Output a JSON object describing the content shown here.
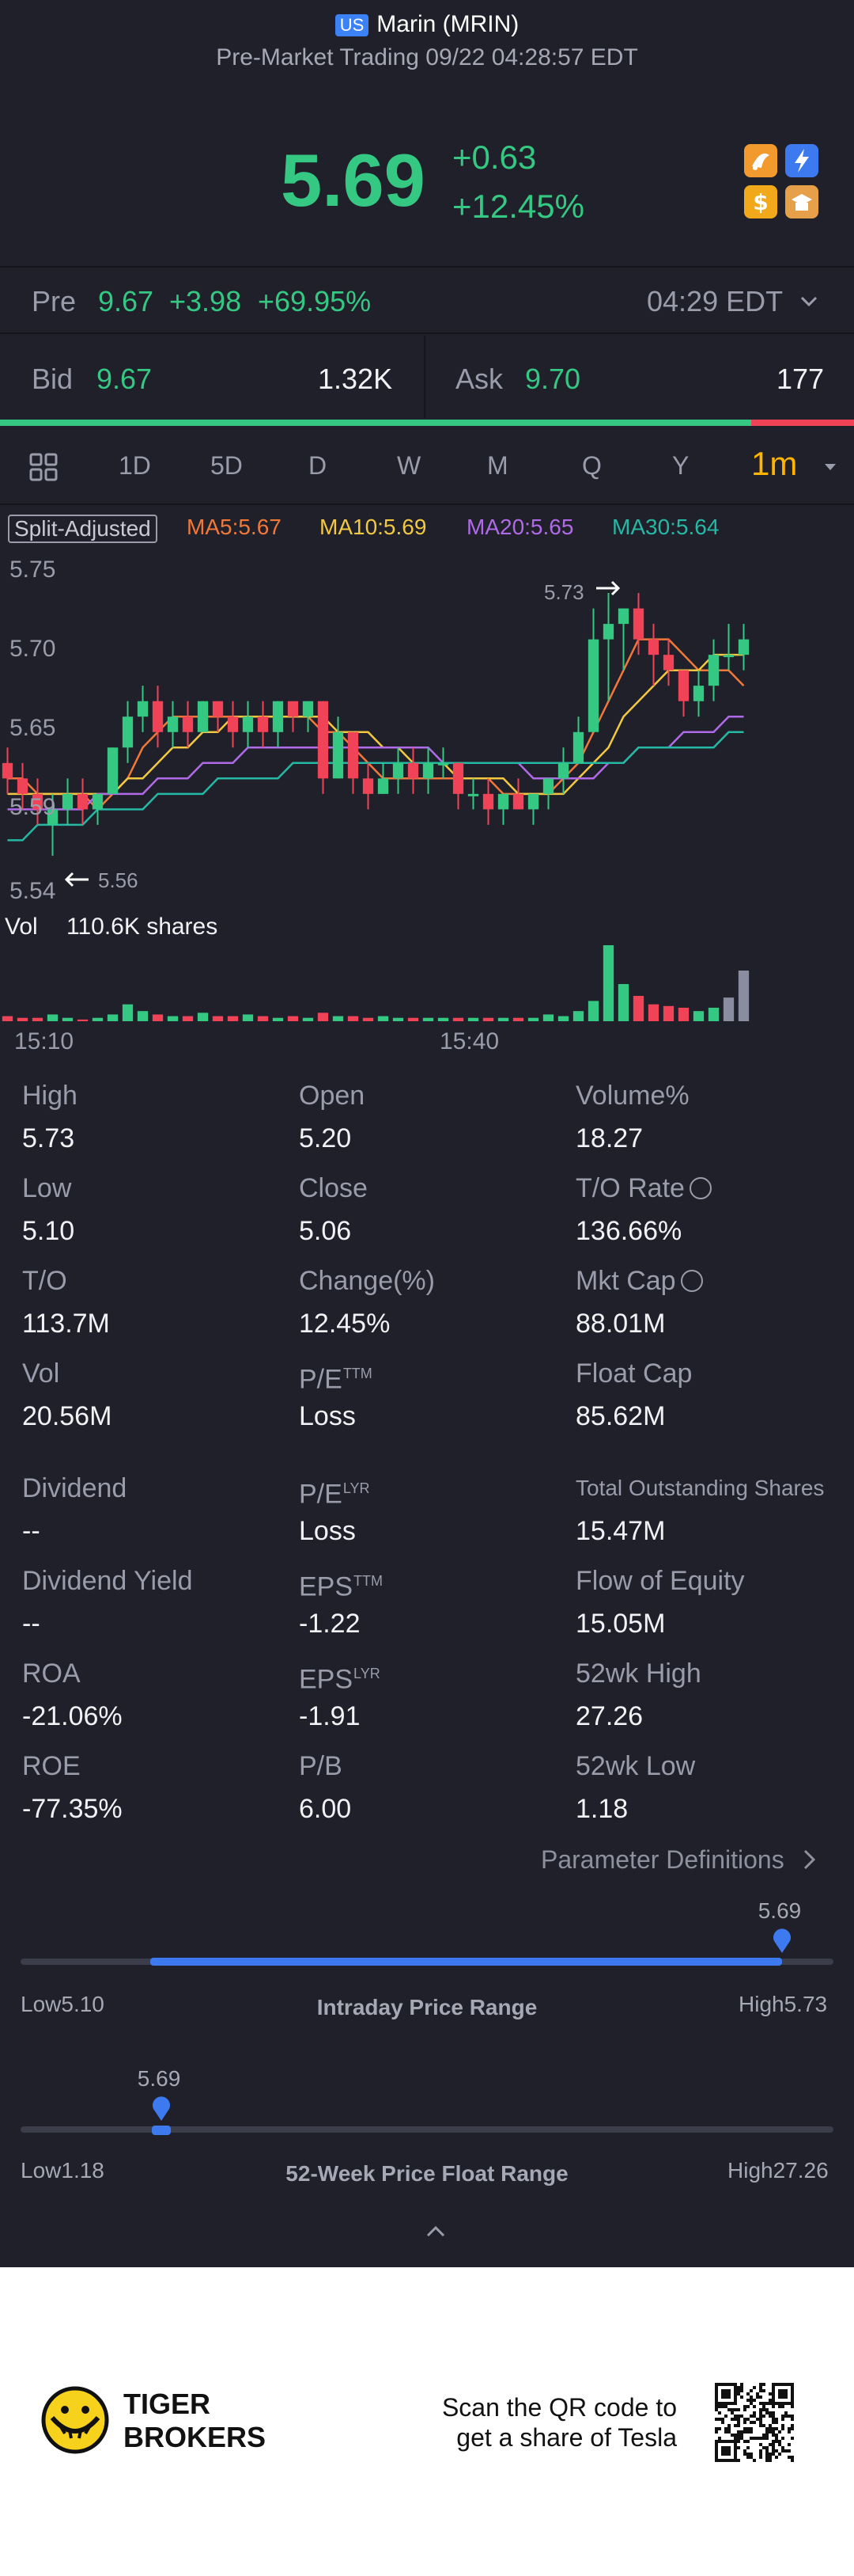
{
  "header": {
    "country_badge": "US",
    "stock_name": "Marin (MRIN)",
    "session_status": "Pre-Market Trading 09/22 04:28:57 EDT"
  },
  "quote": {
    "price": "5.69",
    "change": "+0.63",
    "change_percent": "+12.45%",
    "colors": {
      "up": "#35c883",
      "down": "#f04357",
      "accent": "#ffb400",
      "blue": "#3d7af0"
    }
  },
  "premarket": {
    "label": "Pre",
    "price": "9.67",
    "change": "+3.98",
    "change_percent": "+69.95%",
    "time": "04:29 EDT"
  },
  "bid_ask": {
    "bid_label": "Bid",
    "bid_price": "9.67",
    "bid_size": "1.32K",
    "ask_label": "Ask",
    "ask_price": "9.70",
    "ask_size": "177",
    "bid_share": 0.88
  },
  "period_tabs": [
    "1D",
    "5D",
    "D",
    "W",
    "M",
    "Q",
    "Y",
    "1m"
  ],
  "selected_period": "1m",
  "indicators": {
    "adjust_label": "Split-Adjusted",
    "ma5": "MA5:5.67",
    "ma10": "MA10:5.69",
    "ma20": "MA20:5.65",
    "ma30": "MA30:5.64"
  },
  "chart_axis": {
    "y_ticks": [
      "5.75",
      "5.70",
      "5.65",
      "5.59",
      "5.54"
    ],
    "high_marker": "5.73",
    "low_marker": "5.56",
    "vol_label": "Vol",
    "vol_value": "110.6K shares",
    "x_ticks": [
      "15:10",
      "15:40"
    ]
  },
  "stats": [
    {
      "label": "High",
      "value": "5.73"
    },
    {
      "label": "Open",
      "value": "5.20"
    },
    {
      "label": "Volume%",
      "value": "18.27"
    },
    {
      "label": "Low",
      "value": "5.10"
    },
    {
      "label": "Close",
      "value": "5.06"
    },
    {
      "label": "T/O Rate",
      "value": "136.66%"
    },
    {
      "label": "T/O",
      "value": "113.7M"
    },
    {
      "label": "Change(%)",
      "value": "12.45%"
    },
    {
      "label": "Mkt Cap",
      "value": "88.01M"
    },
    {
      "label": "Vol",
      "value": "20.56M"
    },
    {
      "label": "P/E",
      "sup": "TTM",
      "value": "Loss"
    },
    {
      "label": "Float Cap",
      "value": "85.62M"
    },
    {
      "label": "Dividend",
      "value": "--"
    },
    {
      "label": "P/E",
      "sup": "LYR",
      "value": "Loss"
    },
    {
      "label": "Total Outstanding Shares",
      "value": "15.47M"
    },
    {
      "label": "Dividend Yield",
      "value": "--"
    },
    {
      "label": "EPS",
      "sup": "TTM",
      "value": "-1.22"
    },
    {
      "label": "Flow of Equity",
      "value": "15.05M"
    },
    {
      "label": "ROA",
      "value": "-21.06%"
    },
    {
      "label": "EPS",
      "sup": "LYR",
      "value": "-1.91"
    },
    {
      "label": "52wk High",
      "value": "27.26"
    },
    {
      "label": "ROE",
      "value": "-77.35%"
    },
    {
      "label": "P/B",
      "value": "6.00"
    },
    {
      "label": "52wk Low",
      "value": "1.18"
    }
  ],
  "param_link": "Parameter Definitions",
  "intraday_range": {
    "title": "Intraday Price Range",
    "low_label": "Low",
    "low": "5.10",
    "high_label": "High",
    "high": "5.73",
    "current": "5.69",
    "low_value": 5.1,
    "high_value": 5.73,
    "current_value": 5.69
  },
  "week52_range": {
    "title": "52-Week Price Float Range",
    "low_label": "Low",
    "low": "1.18",
    "high_label": "High",
    "high": "27.26",
    "current": "5.69",
    "low_value": 1.18,
    "high_value": 27.26,
    "current_value": 5.69
  },
  "footer": {
    "brand_line1": "TIGER",
    "brand_line2": "BROKERS",
    "qr_line1": "Scan the QR code to",
    "qr_line2": "get a share of Tesla"
  },
  "chart_data": {
    "type": "candlestick",
    "y_range": [
      5.54,
      5.75
    ],
    "x_ticks": [
      "15:10",
      "15:40"
    ],
    "candles": [
      {
        "o": 5.62,
        "h": 5.63,
        "l": 5.6,
        "c": 5.61
      },
      {
        "o": 5.61,
        "h": 5.62,
        "l": 5.59,
        "c": 5.6
      },
      {
        "o": 5.6,
        "h": 5.61,
        "l": 5.58,
        "c": 5.59
      },
      {
        "o": 5.58,
        "h": 5.6,
        "l": 5.56,
        "c": 5.59
      },
      {
        "o": 5.59,
        "h": 5.61,
        "l": 5.58,
        "c": 5.6
      },
      {
        "o": 5.6,
        "h": 5.61,
        "l": 5.58,
        "c": 5.59
      },
      {
        "o": 5.59,
        "h": 5.6,
        "l": 5.58,
        "c": 5.6
      },
      {
        "o": 5.6,
        "h": 5.63,
        "l": 5.6,
        "c": 5.63
      },
      {
        "o": 5.63,
        "h": 5.66,
        "l": 5.62,
        "c": 5.65
      },
      {
        "o": 5.65,
        "h": 5.67,
        "l": 5.64,
        "c": 5.66
      },
      {
        "o": 5.66,
        "h": 5.67,
        "l": 5.63,
        "c": 5.64
      },
      {
        "o": 5.64,
        "h": 5.66,
        "l": 5.63,
        "c": 5.65
      },
      {
        "o": 5.65,
        "h": 5.66,
        "l": 5.63,
        "c": 5.64
      },
      {
        "o": 5.64,
        "h": 5.66,
        "l": 5.64,
        "c": 5.66
      },
      {
        "o": 5.66,
        "h": 5.66,
        "l": 5.64,
        "c": 5.65
      },
      {
        "o": 5.65,
        "h": 5.66,
        "l": 5.63,
        "c": 5.64
      },
      {
        "o": 5.64,
        "h": 5.66,
        "l": 5.63,
        "c": 5.65
      },
      {
        "o": 5.65,
        "h": 5.66,
        "l": 5.63,
        "c": 5.64
      },
      {
        "o": 5.64,
        "h": 5.66,
        "l": 5.63,
        "c": 5.66
      },
      {
        "o": 5.66,
        "h": 5.66,
        "l": 5.64,
        "c": 5.65
      },
      {
        "o": 5.65,
        "h": 5.66,
        "l": 5.64,
        "c": 5.66
      },
      {
        "o": 5.66,
        "h": 5.66,
        "l": 5.6,
        "c": 5.61
      },
      {
        "o": 5.61,
        "h": 5.65,
        "l": 5.61,
        "c": 5.64
      },
      {
        "o": 5.64,
        "h": 5.64,
        "l": 5.6,
        "c": 5.61
      },
      {
        "o": 5.61,
        "h": 5.62,
        "l": 5.59,
        "c": 5.6
      },
      {
        "o": 5.6,
        "h": 5.62,
        "l": 5.6,
        "c": 5.61
      },
      {
        "o": 5.61,
        "h": 5.63,
        "l": 5.6,
        "c": 5.62
      },
      {
        "o": 5.62,
        "h": 5.63,
        "l": 5.6,
        "c": 5.61
      },
      {
        "o": 5.61,
        "h": 5.63,
        "l": 5.6,
        "c": 5.62
      },
      {
        "o": 5.62,
        "h": 5.63,
        "l": 5.61,
        "c": 5.62
      },
      {
        "o": 5.62,
        "h": 5.62,
        "l": 5.59,
        "c": 5.6
      },
      {
        "o": 5.6,
        "h": 5.61,
        "l": 5.59,
        "c": 5.6
      },
      {
        "o": 5.6,
        "h": 5.61,
        "l": 5.58,
        "c": 5.59
      },
      {
        "o": 5.59,
        "h": 5.6,
        "l": 5.58,
        "c": 5.6
      },
      {
        "o": 5.6,
        "h": 5.61,
        "l": 5.59,
        "c": 5.59
      },
      {
        "o": 5.59,
        "h": 5.6,
        "l": 5.58,
        "c": 5.6
      },
      {
        "o": 5.6,
        "h": 5.61,
        "l": 5.59,
        "c": 5.61
      },
      {
        "o": 5.61,
        "h": 5.63,
        "l": 5.6,
        "c": 5.62
      },
      {
        "o": 5.62,
        "h": 5.65,
        "l": 5.62,
        "c": 5.64
      },
      {
        "o": 5.64,
        "h": 5.72,
        "l": 5.64,
        "c": 5.7
      },
      {
        "o": 5.7,
        "h": 5.73,
        "l": 5.66,
        "c": 5.71
      },
      {
        "o": 5.71,
        "h": 5.72,
        "l": 5.68,
        "c": 5.72
      },
      {
        "o": 5.72,
        "h": 5.73,
        "l": 5.69,
        "c": 5.7
      },
      {
        "o": 5.7,
        "h": 5.71,
        "l": 5.67,
        "c": 5.69
      },
      {
        "o": 5.69,
        "h": 5.7,
        "l": 5.67,
        "c": 5.68
      },
      {
        "o": 5.68,
        "h": 5.68,
        "l": 5.65,
        "c": 5.66
      },
      {
        "o": 5.66,
        "h": 5.68,
        "l": 5.65,
        "c": 5.67
      },
      {
        "o": 5.67,
        "h": 5.7,
        "l": 5.66,
        "c": 5.69
      },
      {
        "o": 5.69,
        "h": 5.71,
        "l": 5.68,
        "c": 5.69
      },
      {
        "o": 5.69,
        "h": 5.71,
        "l": 5.68,
        "c": 5.7
      }
    ],
    "volume": [
      3,
      2,
      2,
      4,
      2,
      1,
      2,
      4,
      10,
      6,
      4,
      3,
      3,
      5,
      3,
      3,
      4,
      3,
      2,
      3,
      2,
      5,
      3,
      3,
      2,
      3,
      2,
      2,
      2,
      2,
      2,
      2,
      2,
      2,
      2,
      2,
      4,
      3,
      6,
      12,
      45,
      22,
      15,
      10,
      9,
      8,
      6,
      8,
      14,
      30
    ],
    "ma_series": [
      {
        "name": "MA5",
        "color": "#f2783a",
        "values": [
          5.61,
          5.61,
          5.6,
          5.6,
          5.6,
          5.6,
          5.59,
          5.6,
          5.61,
          5.63,
          5.64,
          5.65,
          5.65,
          5.65,
          5.65,
          5.65,
          5.65,
          5.65,
          5.65,
          5.65,
          5.65,
          5.64,
          5.64,
          5.63,
          5.62,
          5.61,
          5.61,
          5.61,
          5.61,
          5.61,
          5.61,
          5.61,
          5.61,
          5.6,
          5.6,
          5.6,
          5.6,
          5.61,
          5.62,
          5.64,
          5.66,
          5.68,
          5.7,
          5.7,
          5.7,
          5.69,
          5.68,
          5.68,
          5.68,
          5.67
        ]
      },
      {
        "name": "MA10",
        "color": "#f3c841",
        "values": [
          5.6,
          5.6,
          5.6,
          5.6,
          5.6,
          5.6,
          5.6,
          5.6,
          5.61,
          5.61,
          5.62,
          5.63,
          5.63,
          5.64,
          5.64,
          5.65,
          5.65,
          5.65,
          5.65,
          5.65,
          5.65,
          5.65,
          5.64,
          5.64,
          5.64,
          5.63,
          5.63,
          5.62,
          5.62,
          5.62,
          5.61,
          5.61,
          5.61,
          5.61,
          5.6,
          5.6,
          5.6,
          5.6,
          5.61,
          5.62,
          5.63,
          5.65,
          5.66,
          5.67,
          5.68,
          5.68,
          5.68,
          5.69,
          5.69,
          5.69
        ]
      },
      {
        "name": "MA20",
        "color": "#b06ae8",
        "values": [
          5.59,
          5.59,
          5.59,
          5.59,
          5.59,
          5.59,
          5.6,
          5.6,
          5.6,
          5.6,
          5.61,
          5.61,
          5.61,
          5.62,
          5.62,
          5.62,
          5.63,
          5.63,
          5.63,
          5.63,
          5.63,
          5.63,
          5.63,
          5.63,
          5.63,
          5.63,
          5.63,
          5.63,
          5.63,
          5.62,
          5.62,
          5.62,
          5.62,
          5.62,
          5.62,
          5.61,
          5.61,
          5.61,
          5.61,
          5.61,
          5.62,
          5.62,
          5.63,
          5.63,
          5.63,
          5.64,
          5.64,
          5.64,
          5.65,
          5.65
        ]
      },
      {
        "name": "MA30",
        "color": "#25b8a4",
        "values": [
          5.57,
          5.57,
          5.58,
          5.58,
          5.58,
          5.58,
          5.59,
          5.59,
          5.59,
          5.59,
          5.6,
          5.6,
          5.6,
          5.6,
          5.61,
          5.61,
          5.61,
          5.61,
          5.61,
          5.62,
          5.62,
          5.62,
          5.62,
          5.62,
          5.62,
          5.62,
          5.62,
          5.62,
          5.62,
          5.62,
          5.62,
          5.62,
          5.62,
          5.62,
          5.62,
          5.62,
          5.62,
          5.62,
          5.62,
          5.62,
          5.62,
          5.62,
          5.63,
          5.63,
          5.63,
          5.63,
          5.63,
          5.63,
          5.64,
          5.64
        ]
      }
    ]
  }
}
